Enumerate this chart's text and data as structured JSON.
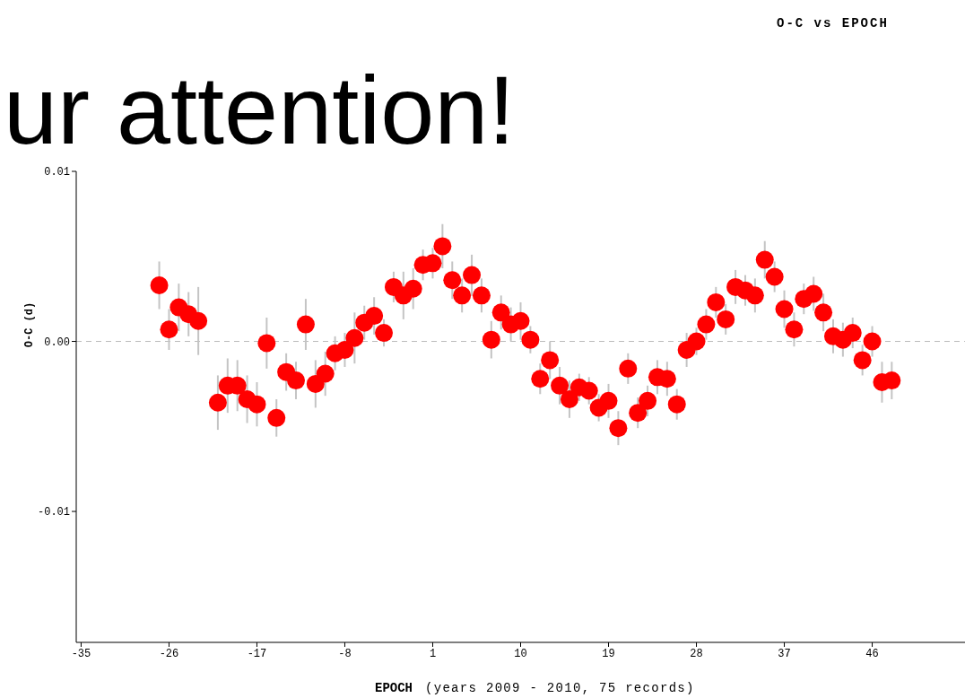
{
  "chart_data": {
    "type": "scatter",
    "title": "O-C vs EPOCH",
    "xlabel": "EPOCH",
    "ylabel": "O-C (d)",
    "annotations": [
      "ur attention!",
      "(years 2009 - 2010, 75 records)"
    ],
    "x": [
      -27,
      -26,
      -25,
      -24,
      -23,
      -21,
      -20,
      -19,
      -18,
      -17,
      -16,
      -15,
      -14,
      -13,
      -12,
      -11,
      -10,
      -9,
      -8,
      -7,
      -6,
      -5,
      -4,
      -3,
      -2,
      -1,
      0,
      1,
      2,
      3,
      4,
      5,
      6,
      7,
      8,
      9,
      10,
      11,
      12,
      13,
      14,
      15,
      16,
      17,
      18,
      19,
      20,
      21,
      22,
      23,
      24,
      25,
      26,
      27,
      28,
      29,
      30,
      31,
      32,
      33,
      34,
      35,
      36,
      37,
      38,
      39,
      40,
      41,
      42,
      43,
      44,
      45,
      46,
      47,
      48
    ],
    "series": [
      {
        "color": "#ff0000",
        "values": [
          0.0033,
          0.0007,
          0.002,
          0.0016,
          0.0012,
          -0.0036,
          -0.0026,
          -0.0026,
          -0.0034,
          -0.0037,
          -0.0001,
          -0.0045,
          -0.0018,
          -0.0023,
          0.001,
          -0.0025,
          -0.0019,
          -0.0007,
          -0.0005,
          0.0002,
          0.0011,
          0.0015,
          0.0005,
          0.0032,
          0.0027,
          0.0031,
          0.0045,
          0.0046,
          0.0056,
          0.0036,
          0.0027,
          0.0039,
          0.0027,
          0.0001,
          0.0017,
          0.001,
          0.0012,
          0.0001,
          -0.0022,
          -0.0011,
          -0.0026,
          -0.0034,
          -0.0027,
          -0.0029,
          -0.0039,
          -0.0035,
          -0.0051,
          -0.0016,
          -0.0042,
          -0.0035,
          -0.0021,
          -0.0022,
          -0.0037,
          -0.0005,
          0.0,
          0.001,
          0.0023,
          0.0013,
          0.0032,
          0.003,
          0.0027,
          0.0048,
          0.0038,
          0.0019,
          0.0007,
          0.0025,
          0.0028,
          0.0017,
          0.0003,
          0.0001,
          0.0005,
          -0.0011,
          0.0,
          -0.0024,
          -0.0023
        ],
        "errors": [
          0.0014,
          0.0012,
          0.0014,
          0.0013,
          0.002,
          0.0016,
          0.0016,
          0.0015,
          0.0014,
          0.0013,
          0.0015,
          0.0011,
          0.0011,
          0.0011,
          0.0015,
          0.0014,
          0.0013,
          0.001,
          0.001,
          0.0015,
          0.001,
          0.0011,
          0.0008,
          0.0009,
          0.0014,
          0.0012,
          0.0009,
          0.0009,
          0.0013,
          0.0011,
          0.001,
          0.0012,
          0.001,
          0.0011,
          0.001,
          0.001,
          0.0011,
          0.0008,
          0.0009,
          0.0011,
          0.0011,
          0.0011,
          0.0008,
          0.0008,
          0.0008,
          0.001,
          0.001,
          0.0009,
          0.0009,
          0.0009,
          0.001,
          0.001,
          0.0009,
          0.001,
          0.0008,
          0.0009,
          0.0009,
          0.0009,
          0.001,
          0.0009,
          0.001,
          0.0011,
          0.0009,
          0.0011,
          0.001,
          0.0009,
          0.001,
          0.0011,
          0.001,
          0.001,
          0.0009,
          0.0009,
          0.0009,
          0.0012,
          0.0011
        ]
      }
    ],
    "xlim": [
      -35.5,
      55.5
    ],
    "xticks": [
      -35,
      -26,
      -17,
      -8,
      1,
      10,
      19,
      28,
      37,
      46
    ],
    "ylim": [
      -0.0177,
      0.01
    ],
    "yticks": [
      -0.01,
      {
        "value": 0,
        "label": "0.00"
      },
      0.01
    ],
    "marker": "circle",
    "ref_lines": [
      {
        "axis": "y",
        "value": 0,
        "color": "#bbbbbb",
        "line_style": "dashed"
      }
    ]
  }
}
